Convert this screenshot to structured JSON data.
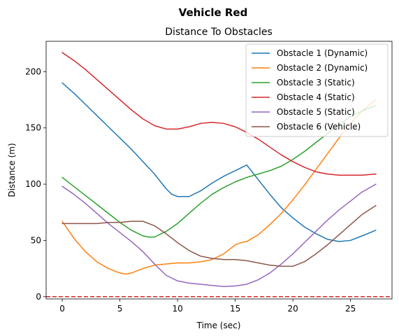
{
  "chart_data": {
    "type": "line",
    "suptitle": "Vehicle Red",
    "title": "Distance To Obstacles",
    "xlabel": "Time (sec)",
    "ylabel": "Distance (m)",
    "xlim": [
      -1.4,
      28.6
    ],
    "ylim": [
      -2,
      227
    ],
    "xticks": [
      0,
      5,
      10,
      15,
      20,
      25
    ],
    "yticks": [
      0,
      50,
      100,
      150,
      200
    ],
    "grid": false,
    "legend_position": "top-right",
    "reference_line": {
      "y": 0,
      "color": "#d62728",
      "style": "dashed"
    },
    "series": [
      {
        "name": "Obstacle 1 (Dynamic)",
        "color": "#1f77b4",
        "points": [
          [
            0,
            190
          ],
          [
            1,
            181
          ],
          [
            2,
            171
          ],
          [
            3,
            161
          ],
          [
            4,
            151
          ],
          [
            5,
            141
          ],
          [
            6,
            131
          ],
          [
            7,
            120
          ],
          [
            8,
            109
          ],
          [
            9,
            96
          ],
          [
            9.5,
            91
          ],
          [
            10,
            89
          ],
          [
            11,
            89
          ],
          [
            12,
            94
          ],
          [
            13,
            101
          ],
          [
            14,
            107
          ],
          [
            15,
            112
          ],
          [
            16,
            117
          ],
          [
            17,
            104
          ],
          [
            18,
            91
          ],
          [
            19,
            79
          ],
          [
            20,
            70
          ],
          [
            21,
            62
          ],
          [
            22,
            56
          ],
          [
            23,
            51
          ],
          [
            24,
            49
          ],
          [
            25,
            50
          ],
          [
            26,
            54
          ],
          [
            27.2,
            59
          ]
        ]
      },
      {
        "name": "Obstacle 2 (Dynamic)",
        "color": "#ff7f0e",
        "points": [
          [
            0,
            67
          ],
          [
            1,
            52
          ],
          [
            2,
            40
          ],
          [
            3,
            31
          ],
          [
            4,
            25
          ],
          [
            5,
            21
          ],
          [
            5.5,
            20
          ],
          [
            6,
            21
          ],
          [
            7,
            25
          ],
          [
            8,
            28
          ],
          [
            9,
            29
          ],
          [
            10,
            30
          ],
          [
            11,
            30
          ],
          [
            12,
            31
          ],
          [
            13,
            33
          ],
          [
            14,
            38
          ],
          [
            15,
            46
          ],
          [
            15.5,
            48
          ],
          [
            16,
            49
          ],
          [
            17,
            55
          ],
          [
            18,
            64
          ],
          [
            19,
            74
          ],
          [
            20,
            86
          ],
          [
            21,
            99
          ],
          [
            22,
            113
          ],
          [
            23,
            127
          ],
          [
            24,
            141
          ],
          [
            25,
            154
          ],
          [
            26,
            165
          ],
          [
            27.2,
            175
          ]
        ]
      },
      {
        "name": "Obstacle 3 (Static)",
        "color": "#2ca02c",
        "points": [
          [
            0,
            106
          ],
          [
            1,
            98
          ],
          [
            2,
            90
          ],
          [
            3,
            82
          ],
          [
            4,
            74
          ],
          [
            5,
            66
          ],
          [
            6,
            59
          ],
          [
            7,
            54
          ],
          [
            7.5,
            53
          ],
          [
            8,
            53
          ],
          [
            9,
            58
          ],
          [
            10,
            65
          ],
          [
            11,
            74
          ],
          [
            12,
            83
          ],
          [
            13,
            91
          ],
          [
            14,
            97
          ],
          [
            15,
            102
          ],
          [
            16,
            106
          ],
          [
            17,
            109
          ],
          [
            18,
            112
          ],
          [
            19,
            116
          ],
          [
            20,
            122
          ],
          [
            21,
            129
          ],
          [
            22,
            137
          ],
          [
            23,
            145
          ],
          [
            24,
            153
          ],
          [
            25,
            160
          ],
          [
            26,
            165
          ],
          [
            27.2,
            170
          ]
        ]
      },
      {
        "name": "Obstacle 4 (Static)",
        "color": "#d62728",
        "points": [
          [
            0,
            217
          ],
          [
            1,
            210
          ],
          [
            2,
            202
          ],
          [
            3,
            193
          ],
          [
            4,
            184
          ],
          [
            5,
            175
          ],
          [
            6,
            166
          ],
          [
            7,
            158
          ],
          [
            8,
            152
          ],
          [
            9,
            149
          ],
          [
            10,
            149
          ],
          [
            11,
            151
          ],
          [
            12,
            154
          ],
          [
            13,
            155
          ],
          [
            14,
            154
          ],
          [
            15,
            151
          ],
          [
            16,
            146
          ],
          [
            17,
            140
          ],
          [
            18,
            133
          ],
          [
            19,
            126
          ],
          [
            20,
            120
          ],
          [
            21,
            115
          ],
          [
            22,
            111
          ],
          [
            23,
            109
          ],
          [
            24,
            108
          ],
          [
            25,
            108
          ],
          [
            26,
            108
          ],
          [
            27.2,
            109
          ]
        ]
      },
      {
        "name": "Obstacle 5 (Static)",
        "color": "#9467bd",
        "points": [
          [
            0,
            98
          ],
          [
            1,
            91
          ],
          [
            2,
            83
          ],
          [
            3,
            74
          ],
          [
            4,
            65
          ],
          [
            5,
            57
          ],
          [
            6,
            49
          ],
          [
            7,
            40
          ],
          [
            8,
            29
          ],
          [
            9,
            19
          ],
          [
            10,
            14
          ],
          [
            11,
            12
          ],
          [
            12,
            11
          ],
          [
            13,
            10
          ],
          [
            14,
            9
          ],
          [
            15,
            9.5
          ],
          [
            16,
            11
          ],
          [
            17,
            15
          ],
          [
            18,
            21
          ],
          [
            19,
            29
          ],
          [
            20,
            38
          ],
          [
            21,
            48
          ],
          [
            22,
            58
          ],
          [
            23,
            68
          ],
          [
            24,
            77
          ],
          [
            25,
            85
          ],
          [
            26,
            93
          ],
          [
            27.2,
            100
          ]
        ]
      },
      {
        "name": "Obstacle 6 (Vehicle)",
        "color": "#8c564b",
        "points": [
          [
            0,
            65
          ],
          [
            1,
            65
          ],
          [
            2,
            65
          ],
          [
            3,
            65
          ],
          [
            4,
            66
          ],
          [
            5,
            66
          ],
          [
            6,
            67
          ],
          [
            7,
            67
          ],
          [
            8,
            63
          ],
          [
            9,
            56
          ],
          [
            10,
            48
          ],
          [
            11,
            41
          ],
          [
            12,
            36
          ],
          [
            13,
            34
          ],
          [
            14,
            33
          ],
          [
            15,
            33
          ],
          [
            16,
            32
          ],
          [
            17,
            30
          ],
          [
            18,
            28
          ],
          [
            19,
            27
          ],
          [
            20,
            27
          ],
          [
            21,
            31
          ],
          [
            22,
            38
          ],
          [
            23,
            46
          ],
          [
            24,
            55
          ],
          [
            25,
            64
          ],
          [
            26,
            73
          ],
          [
            27.2,
            81
          ]
        ]
      }
    ]
  }
}
